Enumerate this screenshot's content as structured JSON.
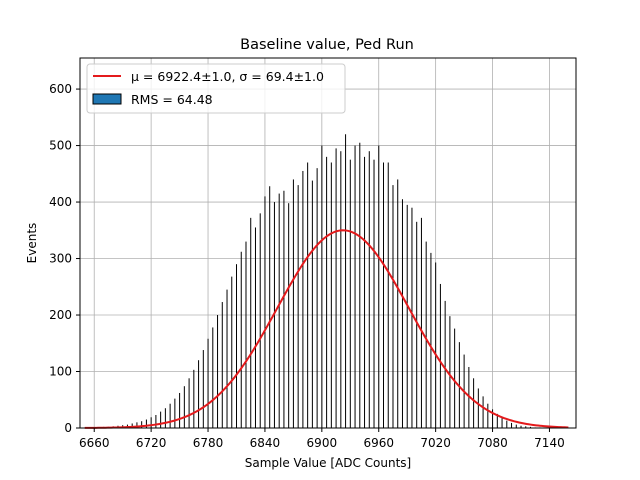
{
  "chart_data": {
    "type": "histogram",
    "title": "Baseline value, Ped Run",
    "xlabel": "Sample Value [ADC Counts]",
    "ylabel": "Events",
    "xlim": [
      6645,
      7168
    ],
    "ylim": [
      0,
      655
    ],
    "x_ticks": [
      6660,
      6720,
      6780,
      6840,
      6900,
      6960,
      7020,
      7080,
      7140
    ],
    "y_ticks": [
      0,
      100,
      200,
      300,
      400,
      500,
      600
    ],
    "grid": true,
    "legend_position": "top-left",
    "colors": {
      "histogram": "#000000",
      "histogram_legend_patch": "#1f77b4",
      "fit": "#e41a1c",
      "grid": "#b0b0b0"
    },
    "series": [
      {
        "name": "RMS = 64.48",
        "kind": "histogram",
        "bin_width": 1,
        "bin_centers": [
          6660,
          6665,
          6670,
          6675,
          6680,
          6685,
          6690,
          6695,
          6700,
          6705,
          6710,
          6715,
          6720,
          6725,
          6730,
          6735,
          6740,
          6745,
          6750,
          6755,
          6760,
          6765,
          6770,
          6775,
          6780,
          6785,
          6790,
          6795,
          6800,
          6805,
          6810,
          6815,
          6820,
          6825,
          6830,
          6835,
          6840,
          6845,
          6850,
          6855,
          6860,
          6865,
          6870,
          6875,
          6880,
          6885,
          6890,
          6895,
          6900,
          6905,
          6910,
          6915,
          6920,
          6925,
          6930,
          6935,
          6940,
          6945,
          6950,
          6955,
          6960,
          6965,
          6970,
          6975,
          6980,
          6985,
          6990,
          6995,
          7000,
          7005,
          7010,
          7015,
          7020,
          7025,
          7030,
          7035,
          7040,
          7045,
          7050,
          7055,
          7060,
          7065,
          7070,
          7075,
          7080,
          7085,
          7090,
          7095,
          7100,
          7105,
          7110,
          7115,
          7120,
          7125,
          7130
        ],
        "counts": [
          1,
          1,
          2,
          2,
          3,
          4,
          5,
          6,
          8,
          10,
          12,
          15,
          19,
          23,
          29,
          35,
          43,
          52,
          62,
          74,
          88,
          103,
          120,
          138,
          158,
          178,
          200,
          223,
          245,
          268,
          290,
          312,
          330,
          372,
          355,
          380,
          410,
          428,
          400,
          415,
          420,
          398,
          440,
          430,
          455,
          470,
          438,
          460,
          500,
          480,
          470,
          495,
          490,
          520,
          475,
          500,
          505,
          480,
          490,
          475,
          500,
          470,
          470,
          430,
          440,
          405,
          395,
          390,
          365,
          372,
          330,
          310,
          293,
          255,
          225,
          198,
          176,
          152,
          130,
          108,
          88,
          70,
          56,
          43,
          33,
          25,
          18,
          13,
          9,
          6,
          4,
          3,
          2,
          1,
          1
        ]
      },
      {
        "name": "μ = 6922.4±1.0, σ = 69.4±1.0",
        "kind": "gaussian_fit",
        "mu": 6922.4,
        "mu_err": 1.0,
        "sigma": 69.4,
        "sigma_err": 1.0,
        "amplitude": 350,
        "x_range": [
          6650,
          7160
        ]
      }
    ]
  }
}
